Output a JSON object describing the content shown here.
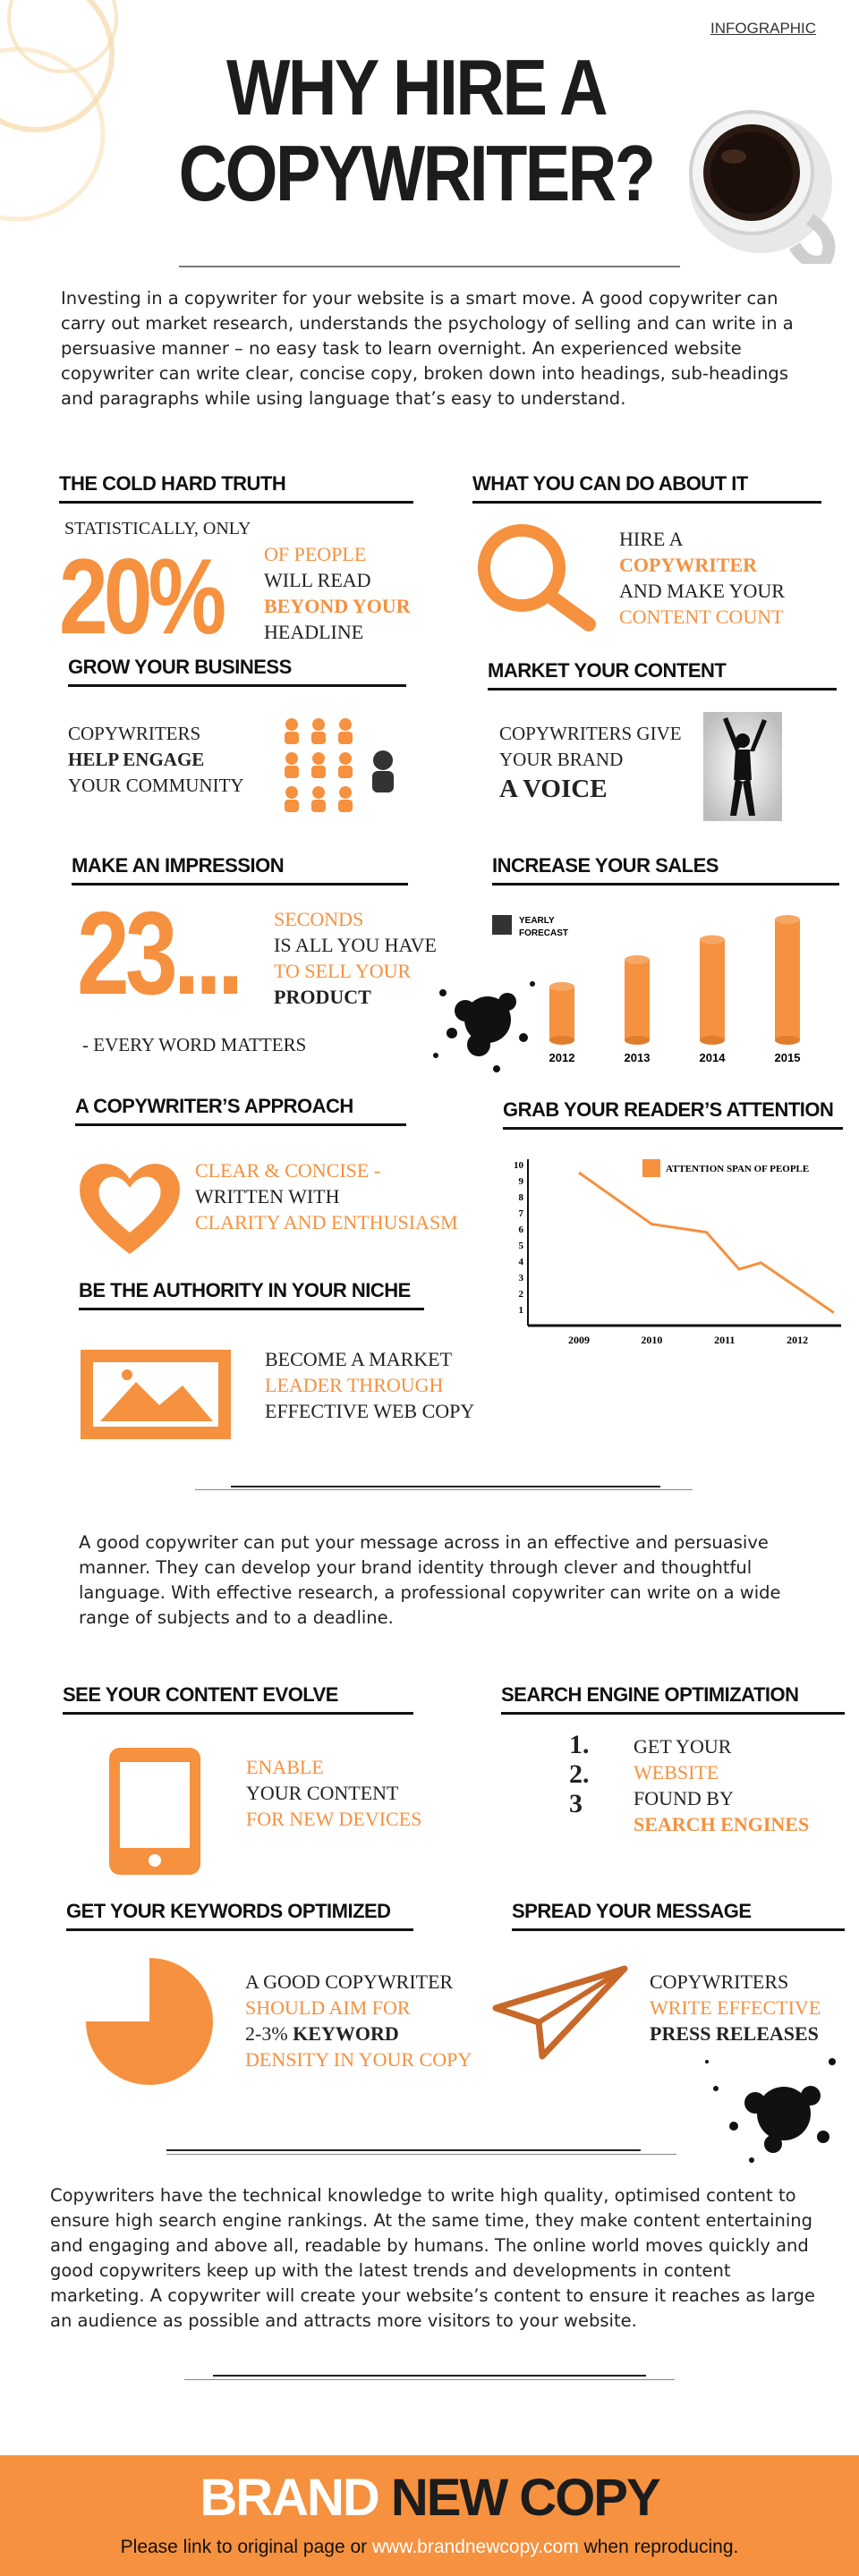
{
  "header": {
    "tag": "INFOGRAPHIC",
    "title_line1": "WHY HIRE A",
    "title_line2": "COPYWRITER?"
  },
  "intro": "Investing in a copywriter for your website is a smart move. A good copywriter can carry out market research, understands the psychology of selling and can write in a persuasive manner – no easy task to learn overnight. An experienced website copywriter can write clear, concise copy, broken down into headings, sub-headings and paragraphs while using language that’s easy to understand.",
  "cold_truth": {
    "heading": "THE COLD HARD TRUTH",
    "pre": "STATISTICALLY, ONLY",
    "big": "20%",
    "l1": "OF PEOPLE",
    "l2": "WILL READ",
    "l3": "BEYOND YOUR",
    "l4": "HEADLINE"
  },
  "what_do": {
    "heading": "WHAT YOU CAN DO ABOUT IT",
    "l1": "HIRE A",
    "l2": "COPYWRITER",
    "l3": "AND MAKE YOUR",
    "l4": "CONTENT COUNT"
  },
  "grow": {
    "heading": "GROW YOUR BUSINESS",
    "l1": "COPYWRITERS",
    "l2": "HELP ENGAGE",
    "l3": "YOUR COMMUNITY"
  },
  "market": {
    "heading": "MARKET YOUR CONTENT",
    "l1": "COPYWRITERS GIVE",
    "l2": "YOUR BRAND",
    "l3": "A VOICE"
  },
  "impression": {
    "heading": "MAKE AN IMPRESSION",
    "big": "23...",
    "l1": "SECONDS",
    "l2": "IS ALL YOU HAVE",
    "l3": "TO SELL YOUR",
    "l4": "PRODUCT",
    "tail": "- EVERY WORD MATTERS"
  },
  "sales": {
    "heading": "INCREASE YOUR SALES",
    "legend_l1": "YEARLY",
    "legend_l2": "FORECAST"
  },
  "approach": {
    "heading": "A COPYWRITER’S APPROACH",
    "l1": "CLEAR & CONCISE -",
    "l2": "WRITTEN WITH",
    "l3": "CLARITY AND ENTHUSIASM"
  },
  "attention": {
    "heading": "GRAB YOUR READER’S ATTENTION",
    "legend": "ATTENTION SPAN OF PEOPLE"
  },
  "authority": {
    "heading": "BE THE AUTHORITY IN YOUR NICHE",
    "l1": "BECOME A MARKET",
    "l2": "LEADER THROUGH",
    "l3": "EFFECTIVE WEB COPY"
  },
  "middle": "A good copywriter can put your message across in an effective and persuasive manner. They can develop your brand identity through clever and thoughtful language. With effective research, a professional copywriter can write on a wide range of subjects and to a deadline.",
  "evolve": {
    "heading": "SEE YOUR CONTENT EVOLVE",
    "l1": "ENABLE",
    "l2": "YOUR CONTENT",
    "l3": "FOR NEW DEVICES"
  },
  "seo": {
    "heading": "SEARCH ENGINE  OPTIMIZATION",
    "n1": "1.",
    "n2": "2.",
    "n3": "3",
    "l1": "GET YOUR",
    "l2": "WEBSITE",
    "l3": "FOUND BY",
    "l4": "SEARCH ENGINES"
  },
  "keywords": {
    "heading": "GET YOUR KEYWORDS OPTIMIZED",
    "l1": "A GOOD COPYWRITER",
    "l2": "SHOULD AIM FOR",
    "l3a": "2-3%",
    "l3b": "KEYWORD",
    "l4": "DENSITY IN YOUR COPY"
  },
  "spread": {
    "heading": "SPREAD YOUR MESSAGE",
    "l1": "COPYWRITERS",
    "l2": "WRITE EFFECTIVE",
    "l3": "PRESS RELEASES"
  },
  "closing": "Copywriters have the technical knowledge to write high quality, optimised content to ensure high search engine rankings. At the same time, they make content entertaining and engaging and above all, readable by humans. The online world moves quickly and good copywriters keep up with the latest trends and developments in content marketing. A copywriter will create your website’s content to ensure it reaches as large an audience as possible and attracts more visitors to your website.",
  "footer": {
    "brand1": "BRAND",
    "brand2": "NEW COPY",
    "note_pre": "Please link to original page or",
    "link": "www.brandnewcopy.com",
    "note_post": "when reproducing."
  },
  "colors": {
    "accent": "#f5913f",
    "dark": "#111111"
  },
  "chart_data": [
    {
      "type": "bar",
      "title": "",
      "legend": [
        "YEARLY FORECAST"
      ],
      "categories": [
        "2012",
        "2013",
        "2014",
        "2015"
      ],
      "values": [
        40,
        60,
        75,
        90
      ],
      "grid": false
    },
    {
      "type": "line",
      "title": "",
      "legend": [
        "ATTENTION SPAN OF PEOPLE"
      ],
      "x": [
        "2009",
        "2010",
        "2011",
        "2012"
      ],
      "y_ticks": [
        1,
        2,
        3,
        4,
        5,
        6,
        7,
        8,
        9,
        10
      ],
      "ylim": [
        0,
        10
      ],
      "points": [
        [
          2009,
          9.5
        ],
        [
          2010,
          6.3
        ],
        [
          2010.75,
          5.8
        ],
        [
          2011.2,
          3.5
        ],
        [
          2011.5,
          3.9
        ],
        [
          2012.5,
          0.8
        ]
      ],
      "grid": false
    }
  ]
}
